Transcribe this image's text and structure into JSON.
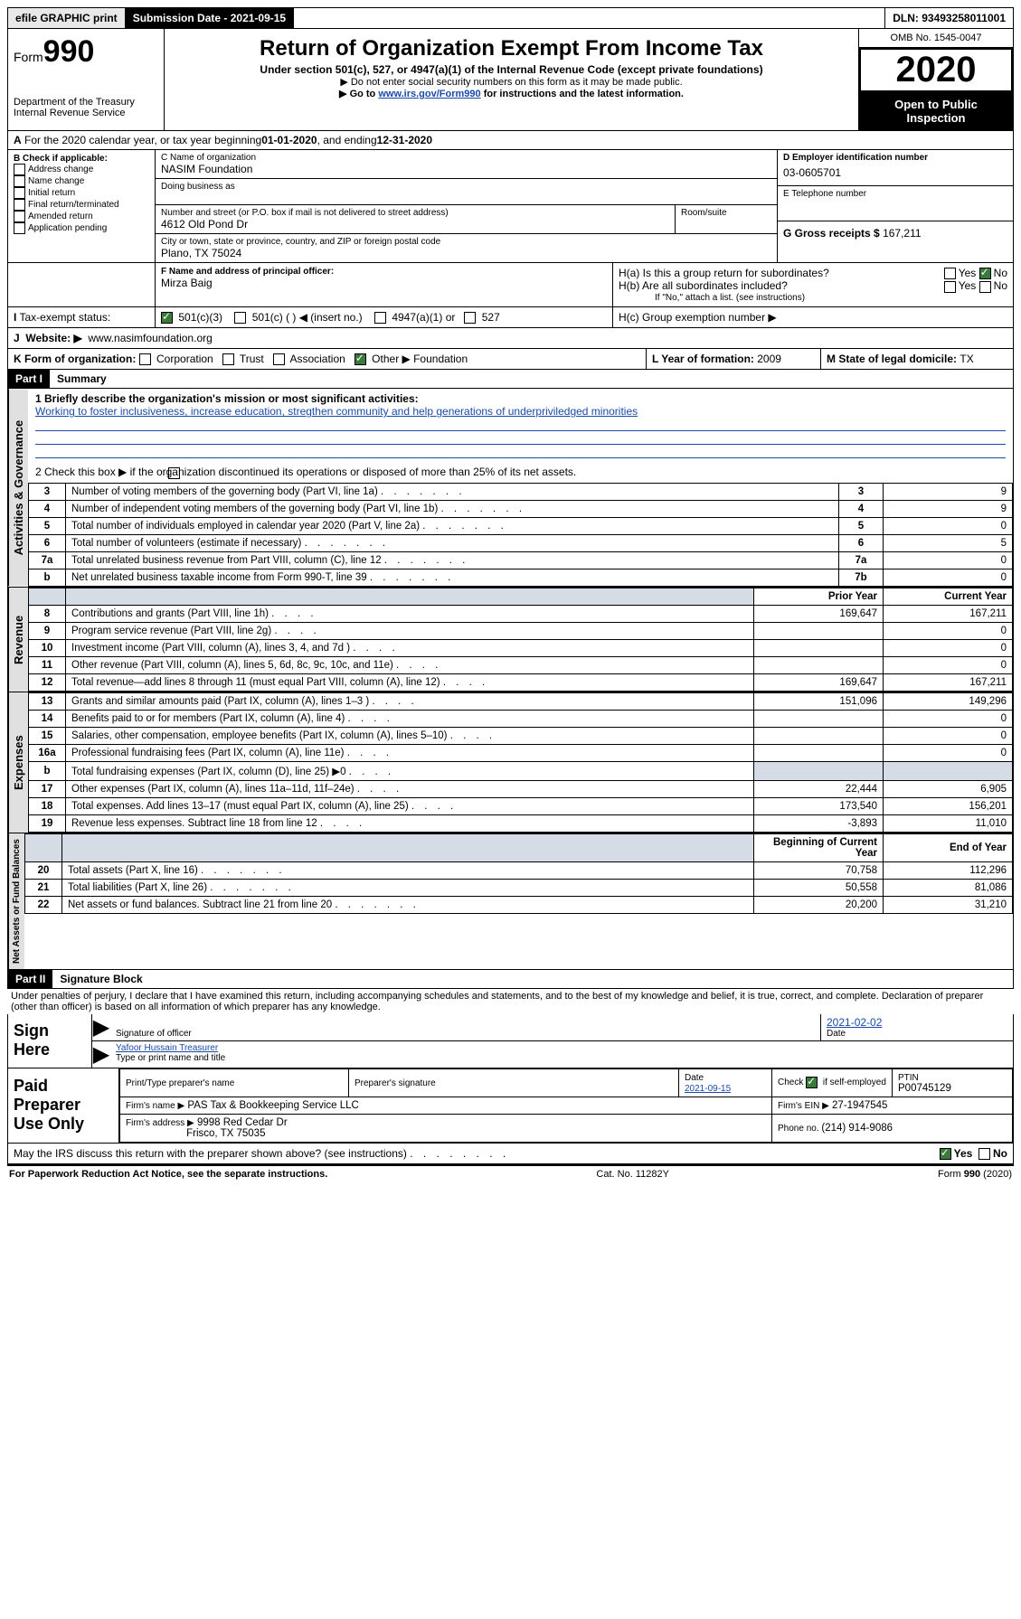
{
  "top": {
    "efile": "efile GRAPHIC print",
    "submission_label": "Submission Date - ",
    "submission_date": "2021-09-15",
    "dln_label": "DLN: ",
    "dln": "93493258011001"
  },
  "header": {
    "form_prefix": "Form",
    "form_num": "990",
    "dept1": "Department of the Treasury",
    "dept2": "Internal Revenue Service",
    "title": "Return of Organization Exempt From Income Tax",
    "sub": "Under section 501(c), 527, or 4947(a)(1) of the Internal Revenue Code (except private foundations)",
    "note1": "▶ Do not enter social security numbers on this form as it may be made public.",
    "note2_pre": "▶ Go to ",
    "note2_link": "www.irs.gov/Form990",
    "note2_post": " for instructions and the latest information.",
    "omb": "OMB No. 1545-0047",
    "year": "2020",
    "open": "Open to Public Inspection"
  },
  "lineA": {
    "text": "For the 2020 calendar year, or tax year beginning ",
    "begin": "01-01-2020",
    "mid": " , and ending ",
    "end": "12-31-2020"
  },
  "B": {
    "title": "B Check if applicable:",
    "items": [
      "Address change",
      "Name change",
      "Initial return",
      "Final return/terminated",
      "Amended return",
      "Application pending"
    ]
  },
  "C": {
    "name_label": "C Name of organization",
    "name": "NASIM Foundation",
    "dba_label": "Doing business as",
    "street_label": "Number and street (or P.O. box if mail is not delivered to street address)",
    "room_label": "Room/suite",
    "street": "4612 Old Pond Dr",
    "city_label": "City or town, state or province, country, and ZIP or foreign postal code",
    "city": "Plano, TX  75024"
  },
  "D": {
    "label": "D Employer identification number",
    "value": "03-0605701"
  },
  "E": {
    "label": "E Telephone number",
    "value": ""
  },
  "G": {
    "label": "G Gross receipts $ ",
    "value": "167,211"
  },
  "F": {
    "label": "F  Name and address of principal officer:",
    "value": "Mirza Baig"
  },
  "H": {
    "a": "H(a)  Is this a group return for subordinates?",
    "b": "H(b)  Are all subordinates included?",
    "b_note": "If \"No,\" attach a list. (see instructions)",
    "c": "H(c)  Group exemption number ▶",
    "yes": "Yes",
    "no": "No"
  },
  "I": {
    "label": "Tax-exempt status:",
    "opts": [
      "501(c)(3)",
      "501(c) (   ) ◀ (insert no.)",
      "4947(a)(1) or",
      "527"
    ]
  },
  "J": {
    "label": "Website: ▶",
    "value": "www.nasimfoundation.org"
  },
  "K": {
    "label": "K Form of organization:",
    "opts": [
      "Corporation",
      "Trust",
      "Association",
      "Other ▶"
    ],
    "other_val": "Foundation"
  },
  "L": {
    "label": "L Year of formation: ",
    "value": "2009"
  },
  "M": {
    "label": "M State of legal domicile: ",
    "value": "TX"
  },
  "part1": {
    "header": "Part I",
    "title": "Summary"
  },
  "summary": {
    "q1_label": "1  Briefly describe the organization's mission or most significant activities:",
    "q1_text": "Working to foster inclusiveness, increase education, stregthen community and help generations of underpriviledged minorities",
    "q2": "2    Check this box ▶           if the organization discontinued its operations or disposed of more than 25% of its net assets.",
    "rows_gov": [
      {
        "n": "3",
        "label": "Number of voting members of the governing body (Part VI, line 1a)",
        "box": "3",
        "val": "9"
      },
      {
        "n": "4",
        "label": "Number of independent voting members of the governing body (Part VI, line 1b)",
        "box": "4",
        "val": "9"
      },
      {
        "n": "5",
        "label": "Total number of individuals employed in calendar year 2020 (Part V, line 2a)",
        "box": "5",
        "val": "0"
      },
      {
        "n": "6",
        "label": "Total number of volunteers (estimate if necessary)",
        "box": "6",
        "val": "5"
      },
      {
        "n": "7a",
        "label": "Total unrelated business revenue from Part VIII, column (C), line 12",
        "box": "7a",
        "val": "0"
      },
      {
        "n": "b",
        "label": "Net unrelated business taxable income from Form 990-T, line 39",
        "box": "7b",
        "val": "0"
      }
    ],
    "col_prior": "Prior Year",
    "col_current": "Current Year",
    "revenue": [
      {
        "n": "8",
        "label": "Contributions and grants (Part VIII, line 1h)",
        "p": "169,647",
        "c": "167,211"
      },
      {
        "n": "9",
        "label": "Program service revenue (Part VIII, line 2g)",
        "p": "",
        "c": "0"
      },
      {
        "n": "10",
        "label": "Investment income (Part VIII, column (A), lines 3, 4, and 7d )",
        "p": "",
        "c": "0"
      },
      {
        "n": "11",
        "label": "Other revenue (Part VIII, column (A), lines 5, 6d, 8c, 9c, 10c, and 11e)",
        "p": "",
        "c": "0"
      },
      {
        "n": "12",
        "label": "Total revenue—add lines 8 through 11 (must equal Part VIII, column (A), line 12)",
        "p": "169,647",
        "c": "167,211"
      }
    ],
    "expenses": [
      {
        "n": "13",
        "label": "Grants and similar amounts paid (Part IX, column (A), lines 1–3 )",
        "p": "151,096",
        "c": "149,296"
      },
      {
        "n": "14",
        "label": "Benefits paid to or for members (Part IX, column (A), line 4)",
        "p": "",
        "c": "0"
      },
      {
        "n": "15",
        "label": "Salaries, other compensation, employee benefits (Part IX, column (A), lines 5–10)",
        "p": "",
        "c": "0"
      },
      {
        "n": "16a",
        "label": "Professional fundraising fees (Part IX, column (A), line 11e)",
        "p": "",
        "c": "0"
      },
      {
        "n": "b",
        "label": "Total fundraising expenses (Part IX, column (D), line 25) ▶0",
        "p": "shade",
        "c": "shade"
      },
      {
        "n": "17",
        "label": "Other expenses (Part IX, column (A), lines 11a–11d, 11f–24e)",
        "p": "22,444",
        "c": "6,905"
      },
      {
        "n": "18",
        "label": "Total expenses. Add lines 13–17 (must equal Part IX, column (A), line 25)",
        "p": "173,540",
        "c": "156,201"
      },
      {
        "n": "19",
        "label": "Revenue less expenses. Subtract line 18 from line 12",
        "p": "-3,893",
        "c": "11,010"
      }
    ],
    "col_begin": "Beginning of Current Year",
    "col_end": "End of Year",
    "net": [
      {
        "n": "20",
        "label": "Total assets (Part X, line 16)",
        "p": "70,758",
        "c": "112,296"
      },
      {
        "n": "21",
        "label": "Total liabilities (Part X, line 26)",
        "p": "50,558",
        "c": "81,086"
      },
      {
        "n": "22",
        "label": "Net assets or fund balances. Subtract line 21 from line 20",
        "p": "20,200",
        "c": "31,210"
      }
    ]
  },
  "part2": {
    "header": "Part II",
    "title": "Signature Block"
  },
  "sig": {
    "perjury": "Under penalties of perjury, I declare that I have examined this return, including accompanying schedules and statements, and to the best of my knowledge and belief, it is true, correct, and complete. Declaration of preparer (other than officer) is based on all information of which preparer has any knowledge.",
    "sign_here": "Sign Here",
    "sig_officer": "Signature of officer",
    "sig_date": "2021-02-02",
    "date_label": "Date",
    "officer_name": "Yafoor Hussain  Treasurer",
    "type_label": "Type or print name and title",
    "paid": "Paid Preparer Use Only",
    "prep_name_label": "Print/Type preparer's name",
    "prep_sig_label": "Preparer's signature",
    "prep_date_label": "Date",
    "prep_date": "2021-09-15",
    "check_self": "Check           if self-employed",
    "ptin_label": "PTIN",
    "ptin": "P00745129",
    "firm_name_label": "Firm's name     ▶",
    "firm_name": "PAS Tax & Bookkeeping Service LLC",
    "firm_ein_label": "Firm's EIN ▶",
    "firm_ein": "27-1947545",
    "firm_addr_label": "Firm's address ▶",
    "firm_addr1": "9998 Red Cedar Dr",
    "firm_addr2": "Frisco, TX  75035",
    "phone_label": "Phone no. ",
    "phone": "(214) 914-9086",
    "discuss": "May the IRS discuss this return with the preparer shown above? (see instructions)",
    "paperwork": "For Paperwork Reduction Act Notice, see the separate instructions.",
    "catno": "Cat. No. 11282Y",
    "formfoot": "Form 990 (2020)"
  },
  "tabs": {
    "gov": "Activities & Governance",
    "rev": "Revenue",
    "exp": "Expenses",
    "net": "Net Assets or Fund Balances"
  }
}
